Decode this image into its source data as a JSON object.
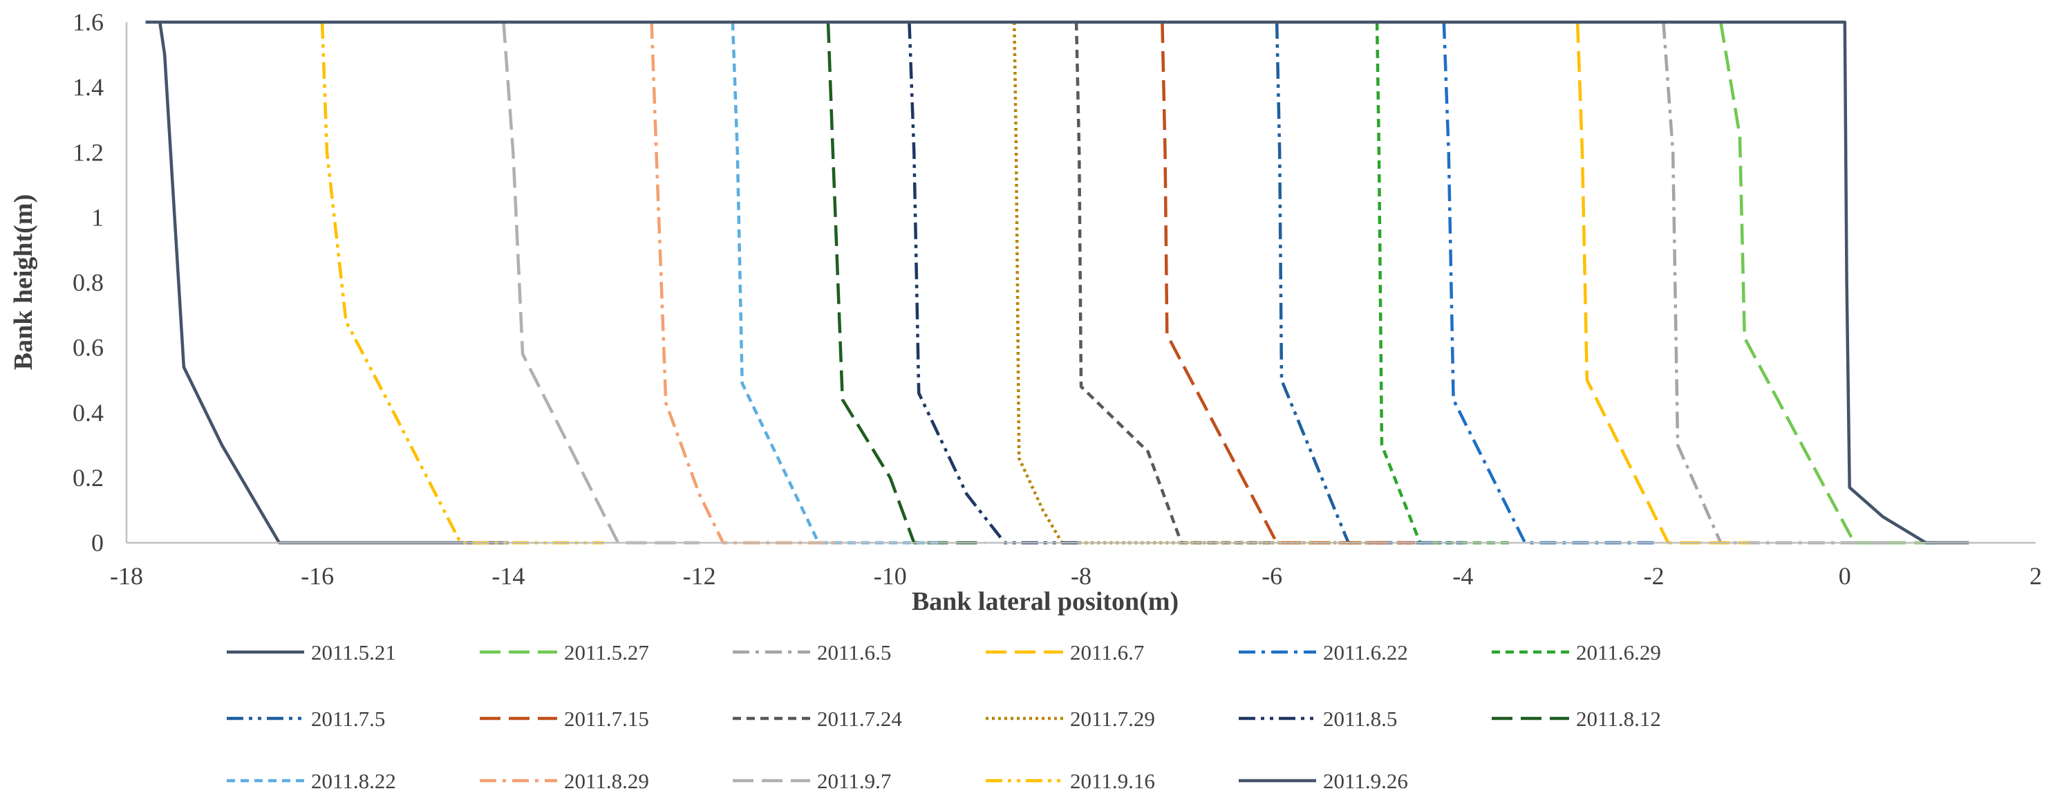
{
  "chart_data": {
    "type": "line",
    "title": "",
    "xlabel": "Bank lateral positon(m)",
    "ylabel": "Bank height(m)",
    "xlim": [
      -18,
      2
    ],
    "ylim": [
      0,
      1.6
    ],
    "x_ticks": [
      "-18",
      "-16",
      "-14",
      "-12",
      "-10",
      "-8",
      "-6",
      "-4",
      "-2",
      "0",
      "2"
    ],
    "y_ticks": [
      "0",
      "0.2",
      "0.4",
      "0.6",
      "0.8",
      "1",
      "1.2",
      "1.4",
      "1.6"
    ],
    "grid": false,
    "legend_position": "bottom",
    "series": [
      {
        "name": "2011.5.21",
        "color": "#44546A",
        "dash": "solid",
        "x": [
          -17.65,
          -17.6,
          -17.55,
          -17.4,
          -17.0,
          -16.4,
          -14.0
        ],
        "y": [
          1.6,
          1.5,
          1.26,
          0.54,
          0.3,
          0.0,
          0.0
        ]
      },
      {
        "name": "2011.5.27",
        "color": "#70C850",
        "dash": "longdash",
        "x": [
          -1.3,
          -1.1,
          -1.05,
          0.1,
          1.0
        ],
        "y": [
          1.6,
          1.25,
          0.63,
          0.0,
          0.0
        ]
      },
      {
        "name": "2011.6.5",
        "color": "#A5A5A5",
        "dash": "dashdot",
        "x": [
          -1.9,
          -1.8,
          -1.75,
          -1.3,
          0.5
        ],
        "y": [
          1.6,
          1.2,
          0.3,
          0.0,
          0.0
        ]
      },
      {
        "name": "2011.6.7",
        "color": "#FFC000",
        "dash": "longdash",
        "x": [
          -2.8,
          -2.75,
          -2.7,
          -1.85,
          -1.0
        ],
        "y": [
          1.6,
          1.2,
          0.5,
          0.0,
          0.0
        ]
      },
      {
        "name": "2011.6.22",
        "color": "#1F6FC5",
        "dash": "dashdot",
        "x": [
          -4.2,
          -4.15,
          -4.1,
          -3.35,
          -2.0
        ],
        "y": [
          1.6,
          1.2,
          0.44,
          0.0,
          0.0
        ]
      },
      {
        "name": "2011.6.29",
        "color": "#2CA52C",
        "dash": "dash",
        "x": [
          -4.9,
          -4.88,
          -4.85,
          -4.45,
          -3.5
        ],
        "y": [
          1.6,
          1.2,
          0.3,
          0.0,
          0.0
        ]
      },
      {
        "name": "2011.7.5",
        "color": "#1F5F9F",
        "dash": "dashdotdot",
        "x": [
          -5.95,
          -5.92,
          -5.9,
          -5.2,
          -4.0
        ],
        "y": [
          1.6,
          1.2,
          0.5,
          0.0,
          0.0
        ]
      },
      {
        "name": "2011.7.15",
        "color": "#C0501C",
        "dash": "longdash",
        "x": [
          -7.15,
          -7.12,
          -7.1,
          -5.95,
          -4.5
        ],
        "y": [
          1.6,
          1.2,
          0.64,
          0.0,
          0.0
        ]
      },
      {
        "name": "2011.7.24",
        "color": "#595959",
        "dash": "dash",
        "x": [
          -8.05,
          -8.02,
          -8.0,
          -7.3,
          -6.95,
          -6.0
        ],
        "y": [
          1.6,
          1.2,
          0.48,
          0.28,
          0.0,
          0.0
        ]
      },
      {
        "name": "2011.7.29",
        "color": "#B8860B",
        "dash": "dot",
        "x": [
          -8.7,
          -8.68,
          -8.65,
          -8.4,
          -8.2,
          -5.0
        ],
        "y": [
          1.6,
          1.2,
          0.26,
          0.1,
          0.0,
          0.0
        ]
      },
      {
        "name": "2011.8.5",
        "color": "#1F3864",
        "dash": "dashdotdot",
        "x": [
          -9.8,
          -9.75,
          -9.7,
          -9.2,
          -8.8,
          -8.0
        ],
        "y": [
          1.6,
          1.2,
          0.46,
          0.15,
          0.0,
          0.0
        ]
      },
      {
        "name": "2011.8.12",
        "color": "#1E5E20",
        "dash": "longdash",
        "x": [
          -10.65,
          -10.6,
          -10.5,
          -10.0,
          -9.75,
          -9.0
        ],
        "y": [
          1.6,
          1.2,
          0.44,
          0.2,
          0.0,
          0.0
        ]
      },
      {
        "name": "2011.8.22",
        "color": "#5BAEE0",
        "dash": "dash",
        "x": [
          -11.65,
          -11.6,
          -11.55,
          -10.75,
          -9.5
        ],
        "y": [
          1.6,
          1.2,
          0.49,
          0.0,
          0.0
        ]
      },
      {
        "name": "2011.8.29",
        "color": "#F4A070",
        "dash": "dashdot",
        "x": [
          -12.5,
          -12.45,
          -12.35,
          -12.0,
          -11.75,
          -10.5
        ],
        "y": [
          1.6,
          1.2,
          0.43,
          0.15,
          0.0,
          0.0
        ]
      },
      {
        "name": "2011.9.7",
        "color": "#B0B0B0",
        "dash": "longdash",
        "x": [
          -14.05,
          -13.95,
          -13.85,
          -12.85,
          -12.0
        ],
        "y": [
          1.6,
          1.2,
          0.58,
          0.0,
          0.0
        ]
      },
      {
        "name": "2011.9.16",
        "color": "#FFC000",
        "dash": "dashdotdot",
        "x": [
          -15.95,
          -15.9,
          -15.7,
          -15.2,
          -14.5,
          -13.0
        ],
        "y": [
          1.6,
          1.2,
          0.68,
          0.4,
          0.0,
          0.0
        ]
      },
      {
        "name": "2011.9.26",
        "color": "#44546A",
        "dash": "solid",
        "x": [
          -17.8,
          0.0,
          0.02,
          0.05,
          0.4,
          0.85,
          1.3
        ],
        "y": [
          1.6,
          1.6,
          0.8,
          0.17,
          0.08,
          0.0,
          0.0
        ]
      }
    ]
  }
}
